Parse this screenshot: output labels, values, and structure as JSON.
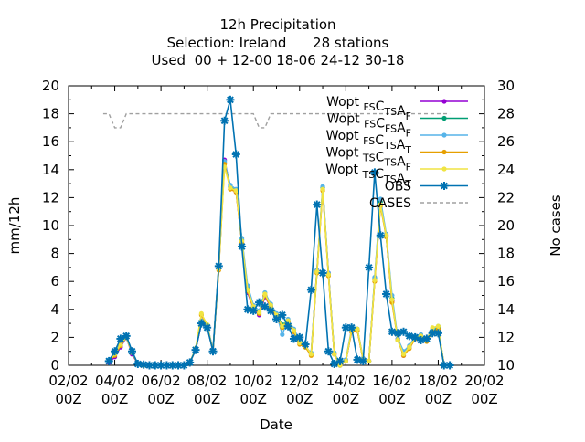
{
  "chart_data": {
    "type": "line",
    "title_lines": [
      "12h Precipitation",
      "Selection: Ireland      28 stations",
      "Used  00 + 12-00 18-06 24-12 30-18"
    ],
    "xlabel": "Date",
    "ylabel": "mm/12h",
    "y2label": "No cases",
    "xlim": [
      "02/02 00Z",
      "20/02 00Z"
    ],
    "ylim": [
      0,
      20
    ],
    "y2lim": [
      10,
      30
    ],
    "grid": false,
    "legend_position": "top-right",
    "x_ticks": [
      {
        "l1": "02/02",
        "l2": "00Z",
        "d": 0
      },
      {
        "l1": "04/02",
        "l2": "00Z",
        "d": 2
      },
      {
        "l1": "06/02",
        "l2": "00Z",
        "d": 4
      },
      {
        "l1": "08/02",
        "l2": "00Z",
        "d": 6
      },
      {
        "l1": "10/02",
        "l2": "00Z",
        "d": 8
      },
      {
        "l1": "12/02",
        "l2": "00Z",
        "d": 10
      },
      {
        "l1": "14/02",
        "l2": "00Z",
        "d": 12
      },
      {
        "l1": "16/02",
        "l2": "00Z",
        "d": 14
      },
      {
        "l1": "18/02",
        "l2": "00Z",
        "d": 16
      },
      {
        "l1": "20/02",
        "l2": "00Z",
        "d": 18
      }
    ],
    "y_ticks": [
      "0",
      "2",
      "4",
      "6",
      "8",
      "10",
      "12",
      "14",
      "16",
      "18",
      "20"
    ],
    "y2_ticks": [
      "10",
      "12",
      "14",
      "16",
      "18",
      "20",
      "22",
      "24",
      "26",
      "28",
      "30"
    ],
    "x": [
      1.75,
      2.0,
      2.25,
      2.5,
      2.75,
      3.0,
      3.25,
      3.5,
      3.75,
      4.0,
      4.25,
      4.5,
      4.75,
      5.0,
      5.25,
      5.5,
      5.75,
      6.0,
      6.25,
      6.5,
      6.75,
      7.0,
      7.25,
      7.5,
      7.75,
      8.0,
      8.25,
      8.5,
      8.75,
      9.0,
      9.25,
      9.5,
      9.75,
      10.0,
      10.25,
      10.5,
      10.75,
      11.0,
      11.25,
      11.5,
      11.75,
      12.0,
      12.25,
      12.5,
      12.75,
      13.0,
      13.25,
      13.5,
      13.75,
      14.0,
      14.25,
      14.5,
      14.75,
      15.0,
      15.25,
      15.5,
      15.75,
      16.0,
      16.25,
      16.5
    ],
    "series": [
      {
        "name": "Wopt_FS C_TS A_F",
        "color": "#9400d3",
        "marker": "circle",
        "values": [
          0.2,
          0.6,
          1.3,
          2.0,
          0.8,
          0.1,
          0,
          0,
          0,
          0,
          0,
          0,
          0,
          0,
          0.2,
          1.1,
          3.0,
          2.8,
          1.0,
          6.9,
          14.7,
          12.7,
          12.4,
          8.9,
          5.2,
          4.1,
          3.6,
          4.9,
          4.2,
          3.4,
          2.8,
          3.1,
          2.4,
          1.6,
          1.4,
          0.8,
          6.8,
          12.6,
          6.6,
          0.8,
          0,
          0.3,
          2.4,
          2.5,
          0.4,
          0.3,
          6.1,
          11.5,
          9.3,
          4.6,
          1.9,
          0.7,
          1.3,
          1.9,
          2.0,
          1.8,
          2.4,
          2.6,
          0,
          0
        ]
      },
      {
        "name": "Wopt_FS C_FS A_F",
        "color": "#009e73",
        "marker": "circle",
        "values": [
          0.3,
          0.8,
          1.5,
          2.0,
          0.9,
          0.1,
          0,
          0,
          0,
          0,
          0,
          0,
          0,
          0,
          0.2,
          1.1,
          3.1,
          2.9,
          1.0,
          7.0,
          14.5,
          12.8,
          12.5,
          9.0,
          5.5,
          4.1,
          3.8,
          5.0,
          4.3,
          3.6,
          2.9,
          3.2,
          2.5,
          1.7,
          1.3,
          0.8,
          6.7,
          12.7,
          6.5,
          0.9,
          0,
          0.3,
          2.5,
          2.6,
          0.4,
          0.3,
          6.2,
          11.7,
          9.2,
          4.8,
          1.8,
          0.8,
          1.3,
          2.0,
          2.1,
          1.8,
          2.5,
          2.7,
          0,
          0
        ]
      },
      {
        "name": "Wopt_FS C_TS A_T",
        "color": "#56b4e9",
        "marker": "circle",
        "values": [
          0.4,
          0.9,
          1.6,
          2.1,
          1.0,
          0.1,
          0,
          0,
          0,
          0,
          0,
          0,
          0,
          0,
          0.2,
          1.2,
          3.2,
          2.9,
          1.1,
          7.1,
          14.6,
          12.9,
          12.6,
          9.1,
          5.7,
          4.3,
          3.9,
          5.2,
          4.4,
          3.7,
          2.2,
          3.3,
          2.6,
          1.8,
          1.3,
          0.9,
          6.8,
          12.8,
          6.6,
          0.9,
          0,
          0.4,
          2.6,
          2.6,
          0.5,
          0.3,
          6.3,
          11.9,
          9.4,
          5.0,
          1.9,
          1.0,
          1.4,
          2.1,
          2.2,
          1.9,
          2.6,
          2.8,
          0,
          0
        ]
      },
      {
        "name": "Wopt_TS C_TS A_F",
        "color": "#e69f00",
        "marker": "circle",
        "values": [
          0.3,
          0.7,
          1.4,
          2.0,
          0.9,
          0.1,
          0,
          0,
          0,
          0,
          0,
          0,
          0,
          0,
          0.2,
          1.1,
          3.6,
          2.8,
          1.0,
          6.8,
          14.4,
          12.6,
          12.4,
          8.8,
          5.3,
          4.1,
          3.7,
          5.0,
          4.2,
          3.5,
          2.7,
          3.1,
          2.4,
          1.5,
          1.3,
          0.7,
          6.6,
          12.5,
          6.4,
          0.8,
          0,
          0.3,
          2.4,
          2.5,
          0.4,
          0.3,
          6.0,
          11.4,
          9.2,
          4.5,
          1.8,
          0.7,
          1.2,
          1.9,
          2.0,
          1.7,
          2.4,
          2.6,
          0,
          0
        ]
      },
      {
        "name": "Wopt_TS C_TS A_T",
        "color": "#f0e442",
        "marker": "circle",
        "values": [
          0.3,
          0.8,
          1.5,
          2.0,
          0.9,
          0.1,
          0,
          0,
          0,
          0,
          0,
          0,
          0,
          0,
          0.2,
          1.2,
          3.7,
          2.9,
          1.0,
          6.9,
          14.2,
          12.7,
          12.5,
          8.9,
          5.4,
          4.2,
          3.8,
          5.1,
          4.3,
          3.6,
          2.8,
          3.2,
          2.5,
          1.6,
          1.4,
          0.8,
          6.7,
          12.6,
          6.5,
          0.8,
          0,
          0.3,
          2.5,
          2.6,
          0.4,
          0.3,
          6.1,
          11.5,
          9.3,
          4.7,
          1.8,
          0.8,
          1.3,
          2.0,
          2.1,
          1.8,
          2.7,
          2.8,
          0,
          0
        ]
      },
      {
        "name": "OBS",
        "color": "#0072b2",
        "marker": "star",
        "values": [
          0.3,
          1.0,
          1.9,
          2.1,
          1.0,
          0.1,
          0.05,
          0,
          0,
          0,
          0,
          0,
          0,
          0,
          0.2,
          1.1,
          3.0,
          2.7,
          1.0,
          7.1,
          17.5,
          19.0,
          15.1,
          8.5,
          4.0,
          3.9,
          4.5,
          4.2,
          3.9,
          3.3,
          3.6,
          2.8,
          1.9,
          2.0,
          1.5,
          5.4,
          11.5,
          6.6,
          1.0,
          0.1,
          0.3,
          2.7,
          2.7,
          0.4,
          0.3,
          7.0,
          13.8,
          9.3,
          5.1,
          2.4,
          2.3,
          2.4,
          2.1,
          2.0,
          1.8,
          1.9,
          2.3,
          2.3,
          0,
          0
        ]
      }
    ],
    "cases": {
      "name": "CASES",
      "color": "#a0a0a0",
      "x": [
        1.5,
        1.75,
        2.0,
        2.25,
        2.5,
        7.75,
        8.0,
        8.25,
        8.5,
        8.75,
        9.0,
        9.5,
        16.5
      ],
      "values": [
        28,
        28,
        27,
        27,
        28,
        28,
        28,
        27,
        27,
        28,
        28,
        28,
        28
      ]
    }
  }
}
